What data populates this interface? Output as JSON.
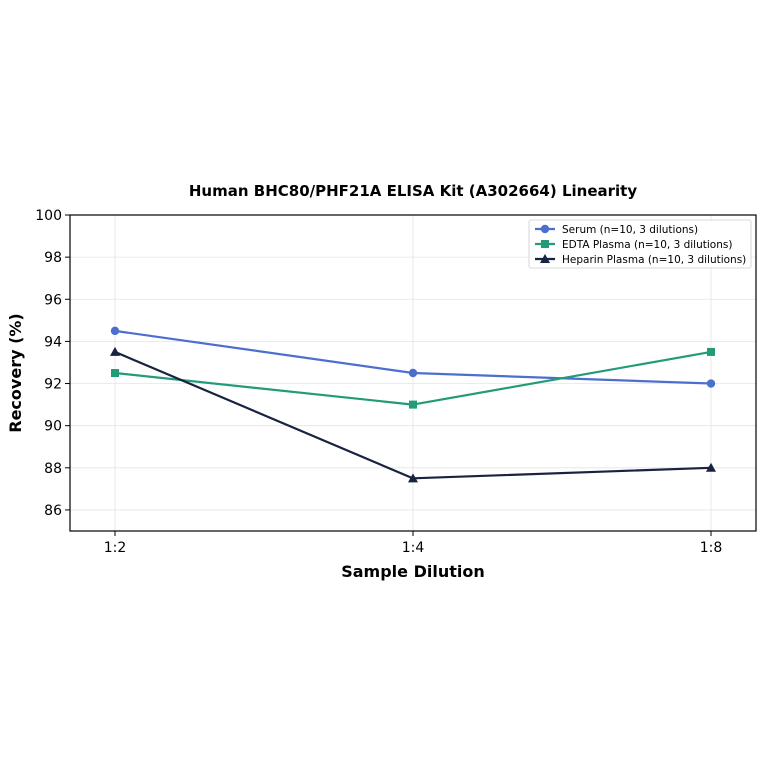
{
  "chart_data": {
    "type": "line",
    "title": "Human BHC80/PHF21A ELISA Kit (A302664) Linearity",
    "xlabel": "Sample Dilution",
    "ylabel": "Recovery (%)",
    "categories": [
      "1:2",
      "1:4",
      "1:8"
    ],
    "ylim": [
      85,
      100
    ],
    "yticks": [
      86,
      88,
      90,
      92,
      94,
      96,
      98,
      100
    ],
    "grid": true,
    "legend_position": "top-right",
    "series": [
      {
        "name": "Serum (n=10, 3 dilutions)",
        "values": [
          94.5,
          92.5,
          92.0
        ],
        "color": "#4c6fcf",
        "marker": "circle"
      },
      {
        "name": "EDTA Plasma (n=10, 3 dilutions)",
        "values": [
          92.5,
          91.0,
          93.5
        ],
        "color": "#229c78",
        "marker": "square"
      },
      {
        "name": "Heparin Plasma (n=10, 3 dilutions)",
        "values": [
          93.5,
          87.5,
          88.0
        ],
        "color": "#172340",
        "marker": "triangle"
      }
    ]
  }
}
